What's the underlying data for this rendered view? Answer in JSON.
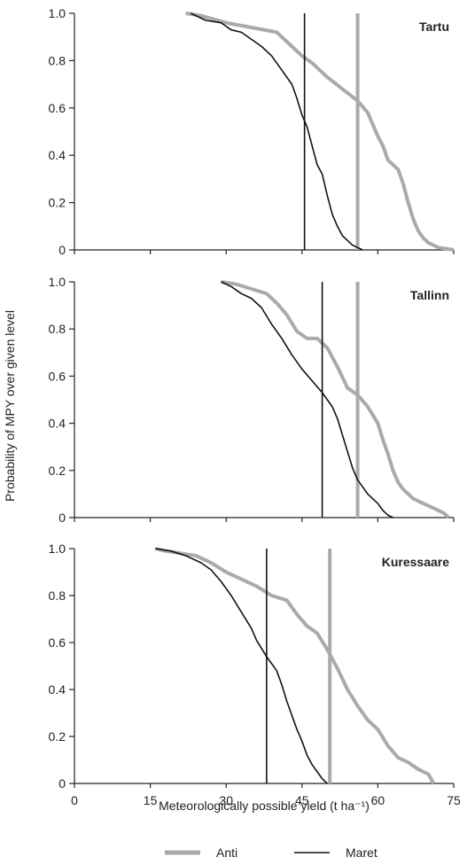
{
  "chart_data": {
    "type": "line",
    "xlabel": "Meteorologically possible yield (t ha⁻¹)",
    "ylabel": "Probability of MPY over given level",
    "xlim": [
      0,
      75
    ],
    "ylim": [
      0,
      1.0
    ],
    "x_ticks": [
      "0",
      "15",
      "30",
      "45",
      "60",
      "75"
    ],
    "y_ticks": [
      "0",
      "0.2",
      "0.4",
      "0.6",
      "0.8",
      "1.0"
    ],
    "grid": false,
    "legend_placement": "bottom",
    "legend": [
      {
        "name": "Anti",
        "color": "#aaaaaa"
      },
      {
        "name": "Maret",
        "color": "#111111"
      }
    ],
    "panels": [
      {
        "title": "Tartu",
        "series": [
          {
            "name": "Anti",
            "color": "#aaaaaa",
            "x": [
              22,
              25,
              30,
              35,
              40,
              43,
              45,
              47,
              50,
              53,
              56,
              58,
              60,
              61,
              62,
              64,
              65,
              66,
              67,
              68,
              69,
              70,
              72,
              75
            ],
            "y": [
              1.0,
              0.99,
              0.96,
              0.94,
              0.92,
              0.86,
              0.82,
              0.79,
              0.73,
              0.68,
              0.63,
              0.58,
              0.48,
              0.44,
              0.38,
              0.34,
              0.28,
              0.2,
              0.13,
              0.08,
              0.05,
              0.03,
              0.01,
              0.0
            ],
            "marker_x": 56
          },
          {
            "name": "Maret",
            "color": "#111111",
            "x": [
              23,
              26,
              29,
              31,
              33,
              35,
              37,
              39,
              41,
              43,
              44,
              45,
              46,
              47,
              48,
              49,
              50,
              51,
              52,
              53,
              54,
              55,
              56,
              57
            ],
            "y": [
              1.0,
              0.97,
              0.96,
              0.93,
              0.92,
              0.89,
              0.86,
              0.82,
              0.76,
              0.7,
              0.64,
              0.57,
              0.52,
              0.44,
              0.36,
              0.32,
              0.23,
              0.15,
              0.1,
              0.06,
              0.04,
              0.02,
              0.01,
              0.0
            ],
            "marker_x": 45.5
          }
        ]
      },
      {
        "title": "Tallinn",
        "series": [
          {
            "name": "Anti",
            "color": "#aaaaaa",
            "x": [
              29,
              32,
              35,
              38,
              40,
              42,
              44,
              46,
              48,
              50,
              52,
              54,
              56,
              58,
              60,
              61,
              62,
              63,
              64,
              65,
              67,
              69,
              71,
              73,
              74
            ],
            "y": [
              1.0,
              0.99,
              0.97,
              0.95,
              0.91,
              0.86,
              0.79,
              0.76,
              0.76,
              0.72,
              0.64,
              0.55,
              0.52,
              0.47,
              0.4,
              0.33,
              0.27,
              0.2,
              0.15,
              0.12,
              0.08,
              0.06,
              0.04,
              0.02,
              0.0
            ],
            "marker_x": 56
          },
          {
            "name": "Maret",
            "color": "#111111",
            "x": [
              29,
              31,
              33,
              35,
              37,
              39,
              41,
              43,
              45,
              47,
              49,
              50,
              51,
              52,
              53,
              54,
              55,
              56,
              57,
              58,
              60,
              61,
              62,
              63
            ],
            "y": [
              1.0,
              0.98,
              0.95,
              0.93,
              0.89,
              0.82,
              0.76,
              0.69,
              0.63,
              0.58,
              0.53,
              0.5,
              0.47,
              0.42,
              0.35,
              0.28,
              0.21,
              0.16,
              0.13,
              0.1,
              0.06,
              0.03,
              0.01,
              0.0
            ],
            "marker_x": 49
          }
        ]
      },
      {
        "title": "Kuressaare",
        "series": [
          {
            "name": "Anti",
            "color": "#aaaaaa",
            "x": [
              16,
              18,
              21,
              24,
              27,
              30,
              33,
              36,
              39,
              42,
              44,
              46,
              48,
              50,
              52,
              54,
              56,
              58,
              60,
              62,
              64,
              66,
              68,
              70,
              71
            ],
            "y": [
              1.0,
              0.99,
              0.98,
              0.97,
              0.94,
              0.9,
              0.87,
              0.84,
              0.8,
              0.78,
              0.72,
              0.67,
              0.64,
              0.57,
              0.49,
              0.4,
              0.33,
              0.27,
              0.23,
              0.16,
              0.11,
              0.09,
              0.06,
              0.04,
              0.0
            ],
            "marker_x": 50.5
          },
          {
            "name": "Maret",
            "color": "#111111",
            "x": [
              16,
              19,
              22,
              25,
              27,
              29,
              31,
              33,
              35,
              36,
              38,
              40,
              41,
              42,
              43,
              44,
              45,
              46,
              47,
              48,
              49,
              50
            ],
            "y": [
              1.0,
              0.99,
              0.97,
              0.94,
              0.91,
              0.86,
              0.8,
              0.73,
              0.66,
              0.61,
              0.54,
              0.48,
              0.42,
              0.35,
              0.29,
              0.23,
              0.18,
              0.12,
              0.08,
              0.05,
              0.02,
              0.0
            ],
            "marker_x": 38
          }
        ]
      }
    ]
  }
}
